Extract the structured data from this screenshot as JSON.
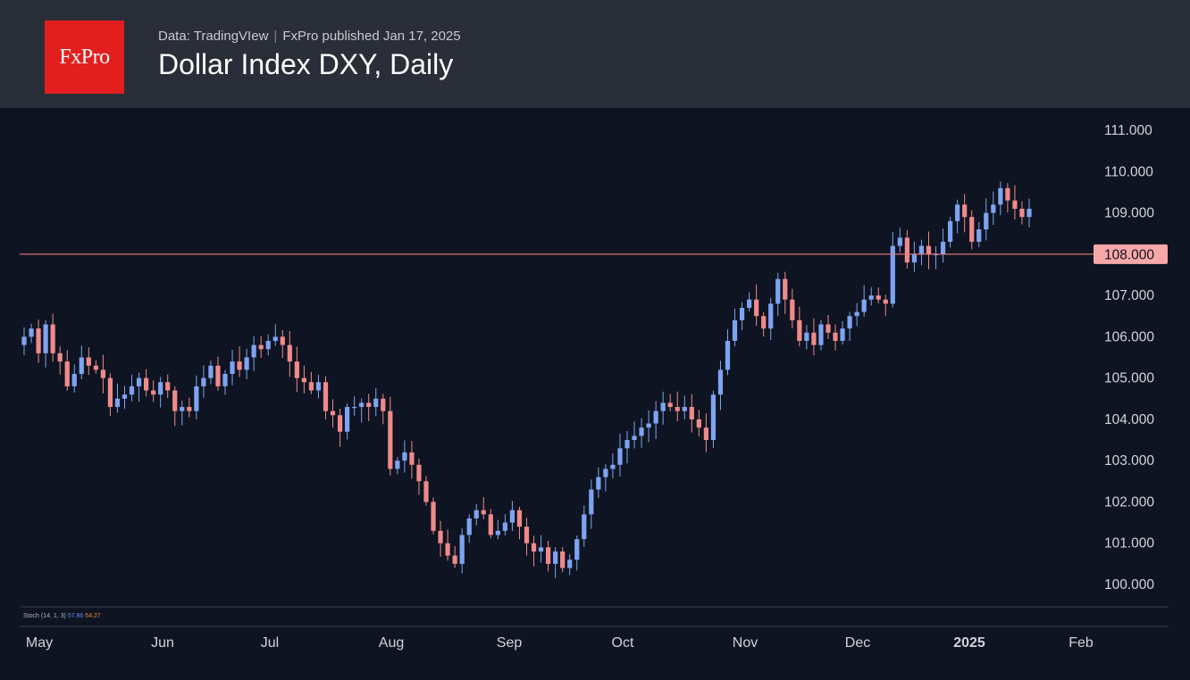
{
  "header": {
    "logo_text": "FxPro",
    "source": "Data: TradingVIew",
    "separator": "|",
    "published": "FxPro published Jan 17, 2025",
    "title": "Dollar Index DXY, Daily"
  },
  "indicator": {
    "label": "Stoch (14, 1, 3)",
    "k_value": "57.86",
    "d_value": "54.27",
    "k_color": "#5b8def",
    "d_color": "#f08a3c"
  },
  "colors": {
    "up": "#7ea3f2",
    "down": "#f08a8a",
    "level_line": "#f07c7c",
    "level_label_bg": "#f7a8a8",
    "level_label_text": "#0e1421"
  },
  "chart_data": {
    "type": "candlestick",
    "title": "Dollar Index DXY, Daily",
    "y_ticks": [
      "111.000",
      "110.000",
      "109.000",
      "108.000",
      "107.000",
      "106.000",
      "105.000",
      "104.000",
      "103.000",
      "102.000",
      "101.000",
      "100.000"
    ],
    "ylim": [
      99.4,
      111.5
    ],
    "x_ticks": [
      {
        "label": "May",
        "bold": false
      },
      {
        "label": "Jun",
        "bold": false
      },
      {
        "label": "Jul",
        "bold": false
      },
      {
        "label": "Aug",
        "bold": false
      },
      {
        "label": "Sep",
        "bold": false
      },
      {
        "label": "Oct",
        "bold": false
      },
      {
        "label": "Nov",
        "bold": false
      },
      {
        "label": "Dec",
        "bold": false
      },
      {
        "label": "2025",
        "bold": true
      },
      {
        "label": "Feb",
        "bold": false
      }
    ],
    "horizontal_level": {
      "value": 108.0,
      "label": "108.000"
    },
    "grid": false,
    "close_path": [
      106.0,
      106.2,
      105.6,
      106.3,
      105.6,
      105.4,
      104.8,
      105.1,
      105.5,
      105.3,
      105.2,
      105.0,
      104.3,
      104.5,
      104.6,
      104.8,
      105.0,
      104.7,
      104.6,
      104.9,
      104.7,
      104.2,
      104.3,
      104.2,
      104.8,
      105.0,
      105.3,
      104.8,
      105.1,
      105.4,
      105.2,
      105.5,
      105.8,
      105.7,
      105.9,
      106.0,
      105.8,
      105.4,
      105.0,
      104.9,
      104.7,
      104.9,
      104.2,
      104.1,
      103.7,
      104.3,
      104.3,
      104.4,
      104.3,
      104.5,
      104.2,
      102.8,
      103.0,
      103.2,
      102.9,
      102.5,
      102.0,
      101.3,
      101.0,
      100.7,
      100.5,
      101.2,
      101.6,
      101.8,
      101.7,
      101.2,
      101.3,
      101.5,
      101.8,
      101.4,
      101.0,
      100.8,
      100.9,
      100.5,
      100.8,
      100.4,
      100.6,
      101.1,
      101.7,
      102.3,
      102.6,
      102.8,
      102.9,
      103.3,
      103.5,
      103.6,
      103.8,
      103.9,
      104.2,
      104.4,
      104.3,
      104.2,
      104.3,
      104.0,
      103.8,
      103.5,
      104.6,
      105.2,
      105.9,
      106.4,
      106.7,
      106.9,
      106.5,
      106.2,
      106.8,
      107.4,
      106.9,
      106.4,
      105.9,
      106.1,
      105.8,
      106.3,
      106.1,
      105.9,
      106.2,
      106.5,
      106.6,
      106.9,
      107.0,
      106.9,
      106.8,
      108.2,
      108.4,
      107.8,
      108.0,
      108.2,
      108.0,
      108.0,
      108.3,
      108.8,
      109.2,
      108.9,
      108.3,
      108.6,
      109.0,
      109.2,
      109.6,
      109.3,
      109.1,
      108.9,
      109.1
    ]
  }
}
